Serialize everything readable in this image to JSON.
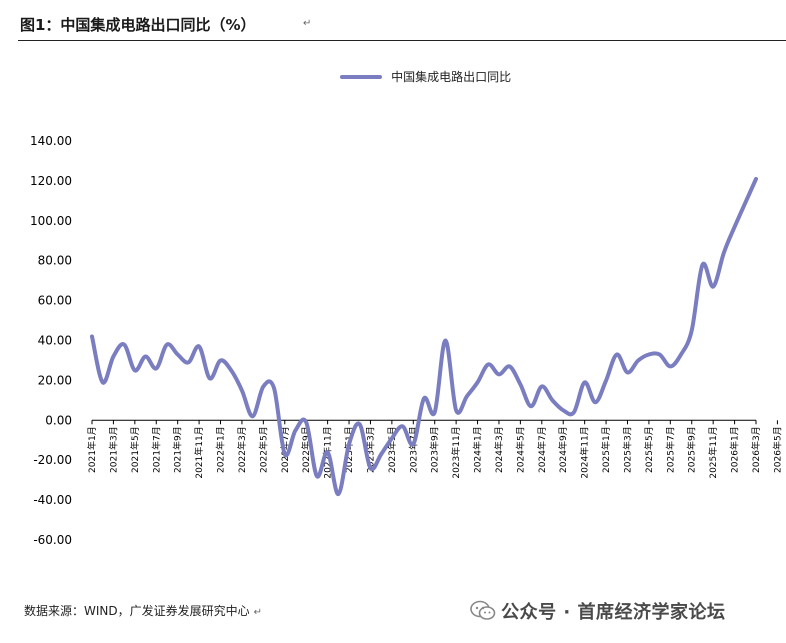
{
  "figure": {
    "title": "图1：中国集成电路出口同比（%）",
    "paragraph_mark": "↵"
  },
  "footer": {
    "source": "数据来源：WIND，广发证券发展研究中心",
    "paragraph_mark": "↵"
  },
  "watermark": {
    "text": "公众号 · 首席经济学家论坛",
    "icon": "wechat-icon"
  },
  "colors": {
    "series": "#7A7EC0",
    "axis": "#000000"
  },
  "chart_data": {
    "type": "line",
    "title": "",
    "xlabel": "",
    "ylabel": "",
    "ylim": [
      -60,
      140
    ],
    "yticks": [
      "140.00",
      "120.00",
      "100.00",
      "80.00",
      "60.00",
      "40.00",
      "20.00",
      "0.00",
      "-20.00",
      "-40.00",
      "-60.00"
    ],
    "grid": false,
    "legend_position": "top-center",
    "x_tick_labels": [
      "2021年1月",
      "2021年3月",
      "2021年5月",
      "2021年7月",
      "2021年9月",
      "2021年11月",
      "2022年1月",
      "2022年3月",
      "2022年5月",
      "2022年7月",
      "2022年9月",
      "2022年11月",
      "2023年1月",
      "2023年3月",
      "2023年5月",
      "2023年7月",
      "2023年9月",
      "2023年11月",
      "2024年1月",
      "2024年3月",
      "2024年5月",
      "2024年7月",
      "2024年9月",
      "2024年11月",
      "2025年1月",
      "2025年3月",
      "2025年5月",
      "2025年7月",
      "2025年9月",
      "2025年11月",
      "2026年1月",
      "2026年3月",
      "2026年5月"
    ],
    "series": [
      {
        "name": "中国集成电路出口同比",
        "color": "#7A7EC0",
        "values": [
          42,
          19,
          32,
          38,
          25,
          32,
          26,
          38,
          33,
          29,
          37,
          21,
          30,
          25,
          15,
          2,
          17,
          16,
          -17,
          -5,
          -1,
          -28,
          -16,
          -37,
          -12,
          -2,
          -24,
          -17,
          -9,
          -3,
          -12,
          11,
          4,
          40,
          5,
          12,
          19,
          28,
          23,
          27,
          18,
          7,
          17,
          10,
          5,
          4,
          19,
          9,
          20,
          33,
          24,
          30,
          33,
          33,
          27,
          33,
          45,
          78,
          67,
          84,
          97,
          109,
          121
        ]
      }
    ]
  }
}
